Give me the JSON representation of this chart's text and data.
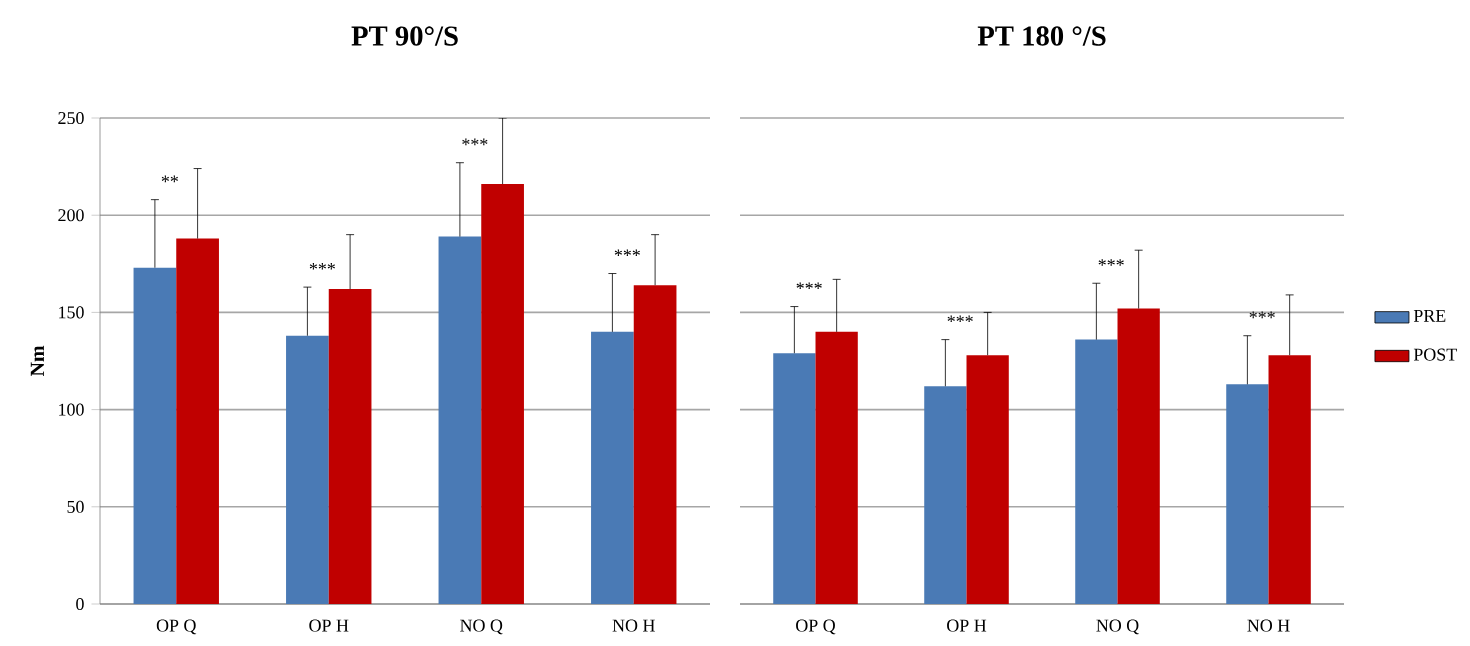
{
  "chart_data": [
    {
      "type": "bar",
      "title": "PT 90°/S",
      "ylabel": "Nm",
      "categories": [
        "OP Q",
        "OP H",
        "NO Q",
        "NO H"
      ],
      "series": [
        {
          "color": "#4a7ab5",
          "values": [
            173,
            138,
            189,
            140
          ],
          "errors": [
            35,
            25,
            38,
            30
          ]
        },
        {
          "color": "#c00000",
          "values": [
            188,
            162,
            216,
            164
          ],
          "errors": [
            36,
            28,
            34,
            26
          ]
        }
      ],
      "ylim": [
        0,
        250
      ],
      "yticks": [
        0,
        50,
        100,
        150,
        200,
        250
      ],
      "grid": "y",
      "annotations": [
        "**",
        "***",
        "***",
        "***"
      ]
    },
    {
      "type": "bar",
      "title": "PT 180 °/S",
      "categories": [
        "OP Q",
        "OP H",
        "NO Q",
        "NO H"
      ],
      "series": [
        {
          "name": "PRE",
          "color": "#4a7ab5",
          "values": [
            129,
            112,
            136,
            113
          ],
          "errors": [
            24,
            24,
            29,
            25
          ]
        },
        {
          "name": "POST",
          "color": "#c00000",
          "values": [
            140,
            128,
            152,
            128
          ],
          "errors": [
            27,
            22,
            30,
            31
          ]
        }
      ],
      "ylim": [
        0,
        250
      ],
      "yticks": [
        0,
        50,
        100,
        150,
        200,
        250
      ],
      "grid": "y",
      "tick_labels": "x",
      "legend": "right",
      "annotations": [
        "***",
        "***",
        "***",
        "***"
      ]
    }
  ]
}
